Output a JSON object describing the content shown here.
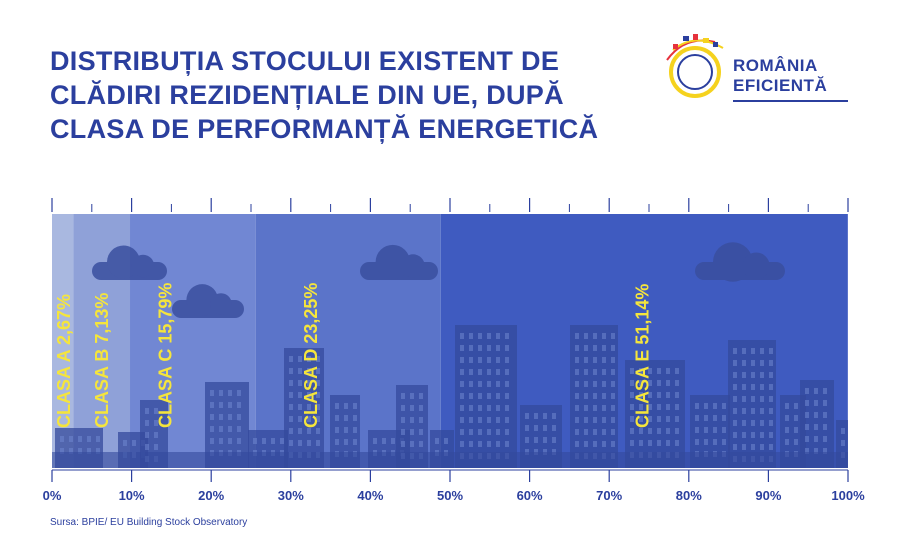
{
  "title_lines": [
    "DISTRIBUȚIA STOCULUI EXISTENT DE",
    "CLĂDIRI REZIDENȚIALE DIN UE, DUPĂ",
    "CLASA DE PERFORMANȚĂ ENERGETICĂ"
  ],
  "logo": {
    "line1": "ROMÂNIA",
    "line2": "EFICIENTĂ"
  },
  "source": "Sursa: BPIE/ EU Building Stock Observatory",
  "colors": {
    "title": "#2b3f9e",
    "label": "#f5e53c",
    "segments": [
      "#a9b8e0",
      "#8fa1d8",
      "#7187d3",
      "#5b74c9",
      "#3f5bc0"
    ],
    "skyline": "#34499c",
    "tick": "#2b3f9e"
  },
  "chart_data": {
    "type": "bar",
    "orientation": "horizontal-stacked",
    "xlim": [
      0,
      100
    ],
    "x_ticks": [
      "0%",
      "10%",
      "20%",
      "30%",
      "40%",
      "50%",
      "60%",
      "70%",
      "80%",
      "90%",
      "100%"
    ],
    "series": [
      {
        "name": "CLASA A",
        "value": 2.67,
        "label": "2,67%"
      },
      {
        "name": "CLASA B",
        "value": 7.13,
        "label": "7,13%"
      },
      {
        "name": "CLASA C",
        "value": 15.79,
        "label": "15,79%"
      },
      {
        "name": "CLASA D",
        "value": 23.25,
        "label": "23,25%"
      },
      {
        "name": "CLASA E",
        "value": 51.14,
        "label": "51,14%"
      }
    ]
  }
}
